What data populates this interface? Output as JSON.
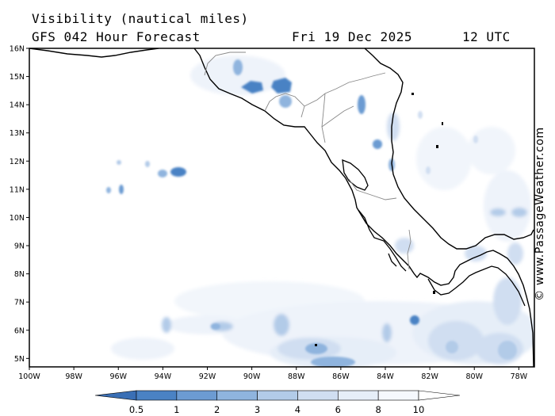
{
  "header": {
    "title": "Visibility (nautical miles)",
    "model": "GFS 042 Hour Forecast",
    "date": "Fri 19 Dec 2025",
    "time": "12 UTC"
  },
  "copyright": "© www.PassageWeather.com",
  "map": {
    "lon_range": [
      -100,
      -77.3
    ],
    "lat_range": [
      4.7,
      16
    ],
    "lat_ticks": [
      {
        "value": 16,
        "label": "16N"
      },
      {
        "value": 15,
        "label": "15N"
      },
      {
        "value": 14,
        "label": "14N"
      },
      {
        "value": 13,
        "label": "13N"
      },
      {
        "value": 12,
        "label": "12N"
      },
      {
        "value": 11,
        "label": "11N"
      },
      {
        "value": 10,
        "label": "10N"
      },
      {
        "value": 9,
        "label": "9N"
      },
      {
        "value": 8,
        "label": "8N"
      },
      {
        "value": 7,
        "label": "7N"
      },
      {
        "value": 6,
        "label": "6N"
      },
      {
        "value": 5,
        "label": "5N"
      }
    ],
    "lon_ticks": [
      {
        "value": -100,
        "label": "100W"
      },
      {
        "value": -98,
        "label": "98W"
      },
      {
        "value": -96,
        "label": "96W"
      },
      {
        "value": -94,
        "label": "94W"
      },
      {
        "value": -92,
        "label": "92W"
      },
      {
        "value": -90,
        "label": "90W"
      },
      {
        "value": -88,
        "label": "88W"
      },
      {
        "value": -86,
        "label": "86W"
      },
      {
        "value": -84,
        "label": "84W"
      },
      {
        "value": -82,
        "label": "82W"
      },
      {
        "value": -80,
        "label": "80W"
      },
      {
        "value": -78,
        "label": "78W"
      }
    ]
  },
  "colorbar": {
    "levels": [
      "0.5",
      "1",
      "2",
      "3",
      "4",
      "6",
      "8",
      "10"
    ],
    "colors": [
      "#3a6fb5",
      "#4a82c4",
      "#6c9bd2",
      "#8fb4de",
      "#b2cbe8",
      "#d0def1",
      "#e6eef8",
      "#f5f8fd",
      "#ffffff"
    ]
  }
}
